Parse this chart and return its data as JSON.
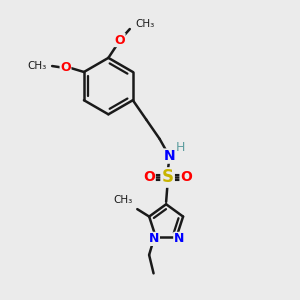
{
  "bg_color": "#ebebeb",
  "bond_color": "#1a1a1a",
  "bond_width": 1.8,
  "figsize": [
    3.0,
    3.0
  ],
  "dpi": 100,
  "xlim": [
    0,
    10
  ],
  "ylim": [
    0,
    10
  ]
}
